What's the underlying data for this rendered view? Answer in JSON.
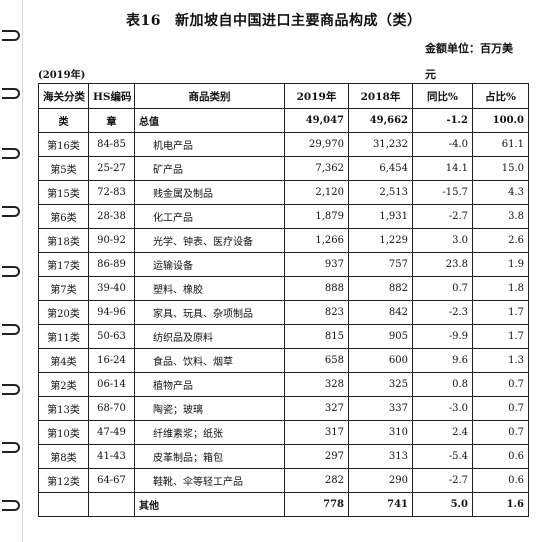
{
  "title": {
    "number": "表16",
    "text": "新加坡自中国进口主要商品构成（类）"
  },
  "unit_label": "金额单位：百万美",
  "unit_label_wrap": "元",
  "year_label": "(2019年)",
  "table": {
    "headers": [
      "海关分类",
      "HS编码",
      "商品类别",
      "2019年",
      "2018年",
      "同比%",
      "占比%"
    ],
    "subheader": {
      "class": "类",
      "hs": "章",
      "category": "总值",
      "y2019": "49,047",
      "y2018": "49,662",
      "yoy": "-1.2",
      "share": "100.0"
    },
    "rows": [
      {
        "class": "第16类",
        "hs": "84-85",
        "category": "机电产品",
        "y2019": "29,970",
        "y2018": "31,232",
        "yoy": "-4.0",
        "share": "61.1"
      },
      {
        "class": "第5类",
        "hs": "25-27",
        "category": "矿产品",
        "y2019": "7,362",
        "y2018": "6,454",
        "yoy": "14.1",
        "share": "15.0"
      },
      {
        "class": "第15类",
        "hs": "72-83",
        "category": "贱金属及制品",
        "y2019": "2,120",
        "y2018": "2,513",
        "yoy": "-15.7",
        "share": "4.3"
      },
      {
        "class": "第6类",
        "hs": "28-38",
        "category": "化工产品",
        "y2019": "1,879",
        "y2018": "1,931",
        "yoy": "-2.7",
        "share": "3.8"
      },
      {
        "class": "第18类",
        "hs": "90-92",
        "category": "光学、钟表、医疗设备",
        "y2019": "1,266",
        "y2018": "1,229",
        "yoy": "3.0",
        "share": "2.6"
      },
      {
        "class": "第17类",
        "hs": "86-89",
        "category": "运输设备",
        "y2019": "937",
        "y2018": "757",
        "yoy": "23.8",
        "share": "1.9"
      },
      {
        "class": "第7类",
        "hs": "39-40",
        "category": "塑料、橡胶",
        "y2019": "888",
        "y2018": "882",
        "yoy": "0.7",
        "share": "1.8"
      },
      {
        "class": "第20类",
        "hs": "94-96",
        "category": "家具、玩具、杂项制品",
        "y2019": "823",
        "y2018": "842",
        "yoy": "-2.3",
        "share": "1.7"
      },
      {
        "class": "第11类",
        "hs": "50-63",
        "category": "纺织品及原料",
        "y2019": "815",
        "y2018": "905",
        "yoy": "-9.9",
        "share": "1.7"
      },
      {
        "class": "第4类",
        "hs": "16-24",
        "category": "食品、饮料、烟草",
        "y2019": "658",
        "y2018": "600",
        "yoy": "9.6",
        "share": "1.3"
      },
      {
        "class": "第2类",
        "hs": "06-14",
        "category": "植物产品",
        "y2019": "328",
        "y2018": "325",
        "yoy": "0.8",
        "share": "0.7"
      },
      {
        "class": "第13类",
        "hs": "68-70",
        "category": "陶瓷；玻璃",
        "y2019": "327",
        "y2018": "337",
        "yoy": "-3.0",
        "share": "0.7"
      },
      {
        "class": "第10类",
        "hs": "47-49",
        "category": "纤维素浆；纸张",
        "y2019": "317",
        "y2018": "310",
        "yoy": "2.4",
        "share": "0.7"
      },
      {
        "class": "第8类",
        "hs": "41-43",
        "category": "皮革制品；箱包",
        "y2019": "297",
        "y2018": "313",
        "yoy": "-5.4",
        "share": "0.6"
      },
      {
        "class": "第12类",
        "hs": "64-67",
        "category": "鞋靴、伞等轻工产品",
        "y2019": "282",
        "y2018": "290",
        "yoy": "-2.7",
        "share": "0.6"
      }
    ],
    "footer": {
      "category": "其他",
      "y2019": "778",
      "y2018": "741",
      "yoy": "5.0",
      "share": "1.6"
    }
  },
  "binder_rings": 9,
  "colors": {
    "ink": "#111111",
    "border": "#222222",
    "paper": "#ffffff"
  }
}
